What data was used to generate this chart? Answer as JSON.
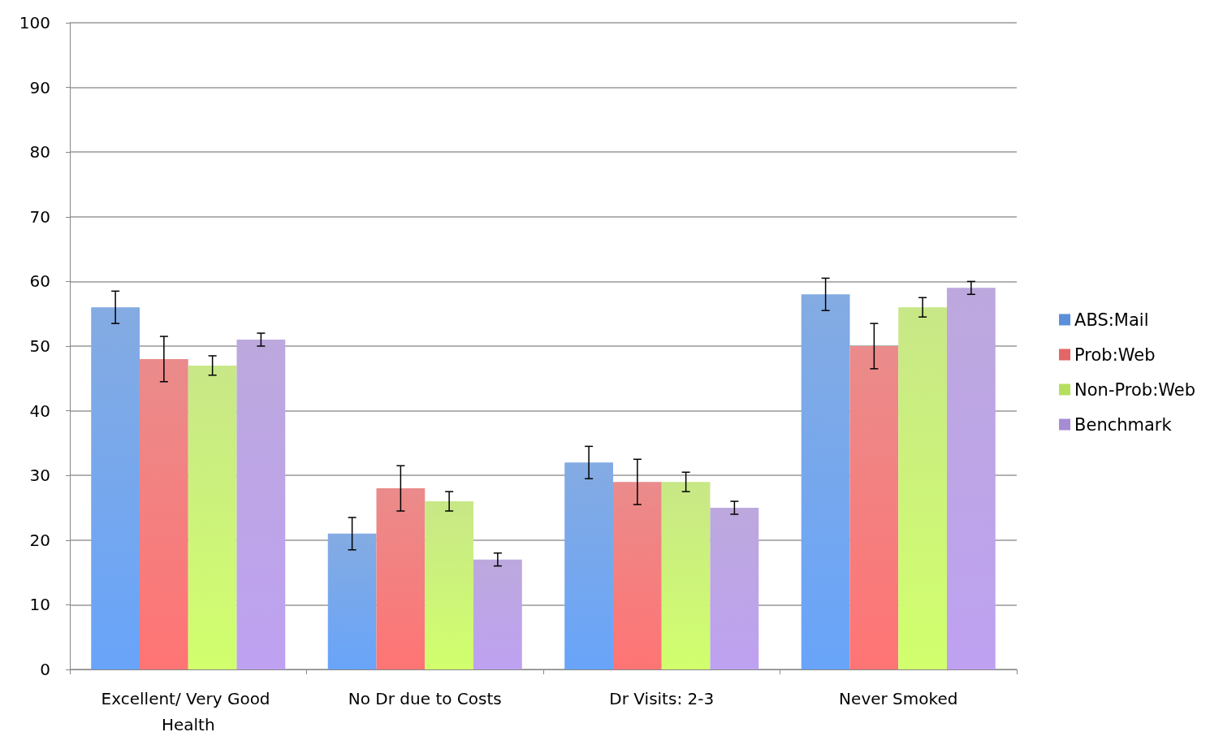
{
  "chart_data": {
    "type": "bar",
    "categories": [
      "Excellent/ Very Good Health",
      "No Dr due to Costs",
      "Dr Visits: 2-3",
      "Never Smoked"
    ],
    "series": [
      {
        "name": "ABS:Mail",
        "color": "#5b8fd9",
        "values": [
          56,
          21,
          32,
          58
        ],
        "errors": [
          2.5,
          2.5,
          2.5,
          2.5
        ]
      },
      {
        "name": "Prob:Web",
        "color": "#e46565",
        "values": [
          48,
          28,
          29,
          50
        ],
        "errors": [
          3.5,
          3.5,
          3.5,
          3.5
        ]
      },
      {
        "name": "Non-Prob:Web",
        "color": "#b6df5f",
        "values": [
          47,
          26,
          29,
          56
        ],
        "errors": [
          1.5,
          1.5,
          1.5,
          1.5
        ]
      },
      {
        "name": "Benchmark",
        "color": "#a68cd2",
        "values": [
          51,
          17,
          25,
          59
        ],
        "errors": [
          1,
          1,
          1,
          1
        ]
      }
    ],
    "ylim": [
      0,
      100
    ],
    "yticks": [
      0,
      10,
      20,
      30,
      40,
      50,
      60,
      70,
      80,
      90,
      100
    ],
    "grid": "y",
    "legend": "right"
  }
}
